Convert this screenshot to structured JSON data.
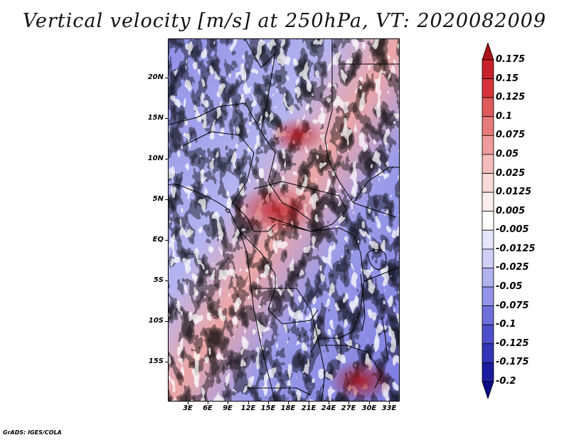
{
  "title": "Vertical velocity [m/s] at 250hPa, VT: 2020082009",
  "footer": "GrADS: IGES/COLA",
  "map": {
    "lat_labels": [
      "20N",
      "15N",
      "10N",
      "5N",
      "EQ",
      "5S",
      "10S",
      "15S"
    ],
    "lon_labels": [
      "3E",
      "6E",
      "9E",
      "12E",
      "15E",
      "18E",
      "21E",
      "24E",
      "27E",
      "30E",
      "33E"
    ],
    "lon_range": [
      0,
      34.5
    ],
    "lat_range": [
      -20,
      24.5
    ]
  },
  "colorbar": {
    "labels": [
      "0.175",
      "0.15",
      "0.125",
      "0.1",
      "0.075",
      "0.05",
      "0.025",
      "0.0125",
      "0.005",
      "-0.005",
      "-0.0125",
      "-0.025",
      "-0.05",
      "-0.075",
      "-0.1",
      "-0.125",
      "-0.175",
      "-0.2"
    ],
    "colors": [
      "#a81418",
      "#c72028",
      "#d8343a",
      "#e05a5c",
      "#e77a7a",
      "#ee9c9c",
      "#f4bcbc",
      "#f9d9d9",
      "#fdeeee",
      "#ffffff",
      "#e6e6fb",
      "#cfcff6",
      "#b2b2f0",
      "#9292e8",
      "#6f6fdc",
      "#4f4fcd",
      "#3434b8",
      "#1c1ca0",
      "#0c0c88"
    ]
  }
}
